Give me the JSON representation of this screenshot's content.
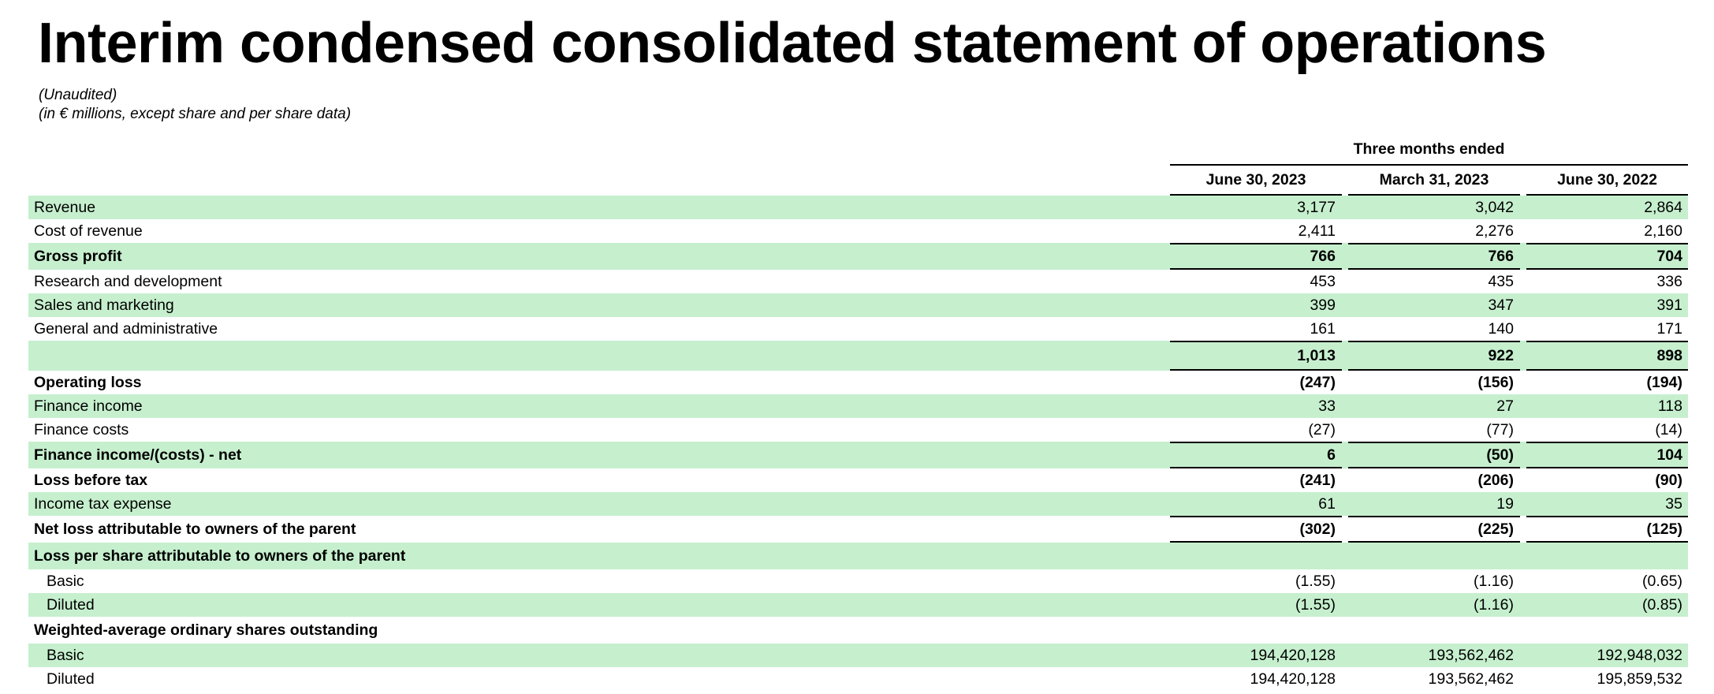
{
  "title": "Interim condensed consolidated statement of operations",
  "subtitle_1": "(Unaudited)",
  "subtitle_2": "(in € millions, except share and per share data)",
  "period_group_header": "Three months ended",
  "columns": [
    "June 30, 2023",
    "March 31, 2023",
    "June 30, 2022"
  ],
  "rows": [
    {
      "label": "Revenue",
      "values": [
        "3,177",
        "3,042",
        "2,864"
      ]
    },
    {
      "label": "Cost of revenue",
      "values": [
        "2,411",
        "2,276",
        "2,160"
      ]
    },
    {
      "label": "Gross profit",
      "values": [
        "766",
        "766",
        "704"
      ]
    },
    {
      "label": "Research and development",
      "values": [
        "453",
        "435",
        "336"
      ]
    },
    {
      "label": "Sales and marketing",
      "values": [
        "399",
        "347",
        "391"
      ]
    },
    {
      "label": "General and administrative",
      "values": [
        "161",
        "140",
        "171"
      ]
    },
    {
      "label": "",
      "values": [
        "1,013",
        "922",
        "898"
      ]
    },
    {
      "label": "Operating loss",
      "values": [
        "(247)",
        "(156)",
        "(194)"
      ]
    },
    {
      "label": "Finance income",
      "values": [
        "33",
        "27",
        "118"
      ]
    },
    {
      "label": "Finance costs",
      "values": [
        "(27)",
        "(77)",
        "(14)"
      ]
    },
    {
      "label": "Finance income/(costs) - net",
      "values": [
        "6",
        "(50)",
        "104"
      ]
    },
    {
      "label": "Loss before tax",
      "values": [
        "(241)",
        "(206)",
        "(90)"
      ]
    },
    {
      "label": "Income tax expense",
      "values": [
        "61",
        "19",
        "35"
      ]
    },
    {
      "label": "Net loss attributable to owners of the parent",
      "values": [
        "(302)",
        "(225)",
        "(125)"
      ]
    },
    {
      "label": "Loss per share attributable to owners of the parent",
      "values": [
        "",
        "",
        ""
      ]
    },
    {
      "label": "Basic",
      "values": [
        "(1.55)",
        "(1.16)",
        "(0.65)"
      ]
    },
    {
      "label": "Diluted",
      "values": [
        "(1.55)",
        "(1.16)",
        "(0.85)"
      ]
    },
    {
      "label": "Weighted-average ordinary shares outstanding",
      "values": [
        "",
        "",
        ""
      ]
    },
    {
      "label": "Basic",
      "values": [
        "194,420,128",
        "193,562,462",
        "192,948,032"
      ]
    },
    {
      "label": "Diluted",
      "values": [
        "194,420,128",
        "193,562,462",
        "195,859,532"
      ]
    }
  ],
  "colors": {
    "row_shade": "#c6efce",
    "text": "#000000"
  }
}
